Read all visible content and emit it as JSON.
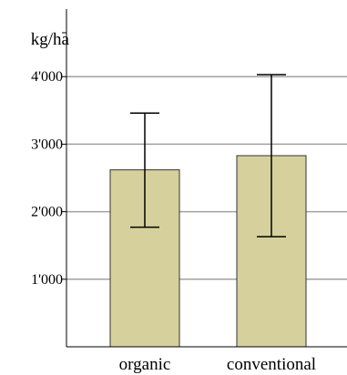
{
  "chart_data": {
    "type": "bar",
    "ylabel": "kg/ha",
    "ylim": [
      0,
      5000
    ],
    "yticks": [
      1000,
      2000,
      3000,
      4000
    ],
    "ytick_labels": [
      "1'000",
      "2'000",
      "3'000",
      "4'000"
    ],
    "grid": true,
    "categories": [
      "organic",
      "conventional"
    ],
    "values": [
      2620,
      2830
    ],
    "error_low": [
      1770,
      1630
    ],
    "error_high": [
      3460,
      4030
    ],
    "colors": {
      "bar_fill": "#d6d19c",
      "bar_stroke": "#333333",
      "grid": "#a0a0a0",
      "axis": "#000000",
      "error_bar": "#000000"
    }
  }
}
